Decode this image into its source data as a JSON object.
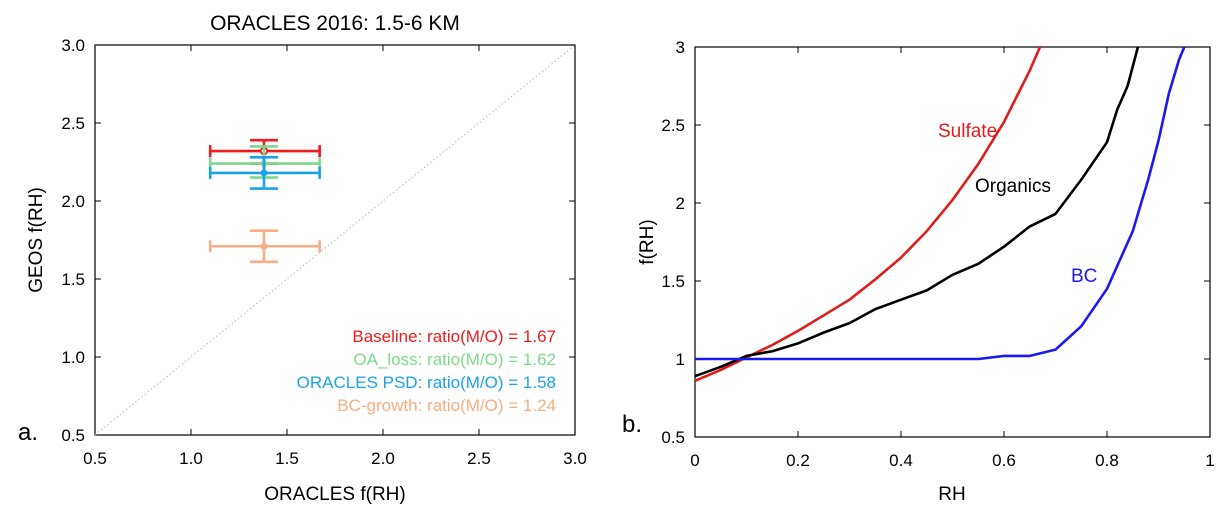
{
  "chart_data": [
    {
      "type": "scatter",
      "panel_label": "a.",
      "title": "ORACLES 2016: 1.5-6 KM",
      "xlabel": "ORACLES f(RH)",
      "ylabel": "GEOS f(RH)",
      "xlim": [
        0.5,
        3.0
      ],
      "ylim": [
        0.5,
        3.0
      ],
      "xticks": [
        "0.5",
        "1.0",
        "1.5",
        "2.0",
        "2.5",
        "3.0"
      ],
      "yticks": [
        "0.5",
        "1.0",
        "1.5",
        "2.0",
        "2.5",
        "3.0"
      ],
      "one_to_one_line": true,
      "grid": false,
      "legend_position": "bottom-right",
      "series": [
        {
          "name": "Baseline: ratio(M/O) = 1.67",
          "color": "#ee1c1c",
          "x": 1.38,
          "y": 2.32,
          "x_err": [
            1.1,
            1.67
          ],
          "y_err": [
            2.24,
            2.39
          ],
          "marker": "open-circle"
        },
        {
          "name": "OA_loss: ratio(M/O) = 1.62",
          "color": "#7fd98c",
          "x": 1.38,
          "y": 2.24,
          "x_err": [
            1.1,
            1.67
          ],
          "y_err": [
            2.15,
            2.35
          ],
          "marker": "filled-circle"
        },
        {
          "name": "ORACLES PSD: ratio(M/O) = 1.58",
          "color": "#1aa3e8",
          "x": 1.38,
          "y": 2.18,
          "x_err": [
            1.1,
            1.67
          ],
          "y_err": [
            2.08,
            2.28
          ],
          "marker": "filled-circle"
        },
        {
          "name": "BC-growth: ratio(M/O) = 1.24",
          "color": "#f7ae84",
          "x": 1.38,
          "y": 1.71,
          "x_err": [
            1.1,
            1.67
          ],
          "y_err": [
            1.61,
            1.81
          ],
          "marker": "filled-circle"
        }
      ]
    },
    {
      "type": "line",
      "panel_label": "b.",
      "xlabel": "RH",
      "ylabel": "f(RH)",
      "xlim": [
        0,
        1
      ],
      "ylim": [
        0.5,
        3
      ],
      "xticks": [
        "0",
        "0.2",
        "0.4",
        "0.6",
        "0.8",
        "1"
      ],
      "yticks": [
        "0.5",
        "1",
        "1.5",
        "2",
        "2.5",
        "3"
      ],
      "grid": false,
      "series": [
        {
          "name": "Sulfate",
          "color": "#e01b1b",
          "x": [
            0,
            0.05,
            0.1,
            0.15,
            0.2,
            0.25,
            0.3,
            0.35,
            0.4,
            0.45,
            0.5,
            0.55,
            0.6,
            0.65,
            0.67
          ],
          "y": [
            0.86,
            0.93,
            1.01,
            1.09,
            1.18,
            1.28,
            1.38,
            1.51,
            1.65,
            1.82,
            2.02,
            2.25,
            2.52,
            2.85,
            3.0
          ]
        },
        {
          "name": "Organics",
          "color": "#000000",
          "x": [
            0,
            0.05,
            0.1,
            0.15,
            0.2,
            0.25,
            0.3,
            0.35,
            0.4,
            0.45,
            0.5,
            0.55,
            0.6,
            0.65,
            0.7,
            0.75,
            0.8,
            0.82,
            0.84,
            0.86
          ],
          "y": [
            0.89,
            0.95,
            1.02,
            1.05,
            1.1,
            1.17,
            1.23,
            1.32,
            1.38,
            1.44,
            1.54,
            1.61,
            1.72,
            1.85,
            1.93,
            2.15,
            2.39,
            2.6,
            2.75,
            3.0
          ]
        },
        {
          "name": "BC",
          "color": "#1a1aee",
          "x": [
            0,
            0.1,
            0.2,
            0.3,
            0.4,
            0.5,
            0.55,
            0.6,
            0.65,
            0.7,
            0.75,
            0.8,
            0.85,
            0.88,
            0.9,
            0.92,
            0.94,
            0.95
          ],
          "y": [
            1.0,
            1.0,
            1.0,
            1.0,
            1.0,
            1.0,
            1.0,
            1.02,
            1.02,
            1.06,
            1.21,
            1.45,
            1.82,
            2.15,
            2.4,
            2.7,
            2.92,
            3.0
          ]
        }
      ]
    }
  ]
}
